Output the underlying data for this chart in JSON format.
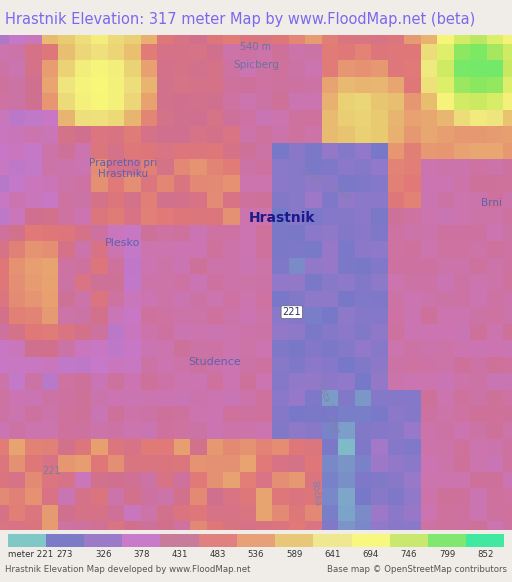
{
  "title": "Hrastnik Elevation: 317 meter Map by www.FloodMap.net (beta)",
  "title_color": "#7b68ee",
  "title_fontsize": 10.5,
  "footer_left": "Hrastnik Elevation Map developed by www.FloodMap.net",
  "footer_right": "Base map © OpenStreetMap contributors",
  "colorbar_labels": [
    "meter 221",
    "273",
    "326",
    "378",
    "431",
    "483",
    "536",
    "589",
    "641",
    "694",
    "746",
    "799",
    "852"
  ],
  "colorbar_values": [
    221,
    273,
    326,
    378,
    431,
    483,
    536,
    589,
    641,
    694,
    746,
    799,
    852
  ],
  "colorbar_colors": [
    "#80c8c8",
    "#7b7bc8",
    "#9b7bc8",
    "#c87bc8",
    "#c87b9b",
    "#e08080",
    "#e8a078",
    "#e8c878",
    "#f0e890",
    "#f8f880",
    "#c8e870",
    "#80e870",
    "#40e8a0"
  ],
  "bg_color": "#f0ede8",
  "fig_width": 5.12,
  "fig_height": 5.82
}
